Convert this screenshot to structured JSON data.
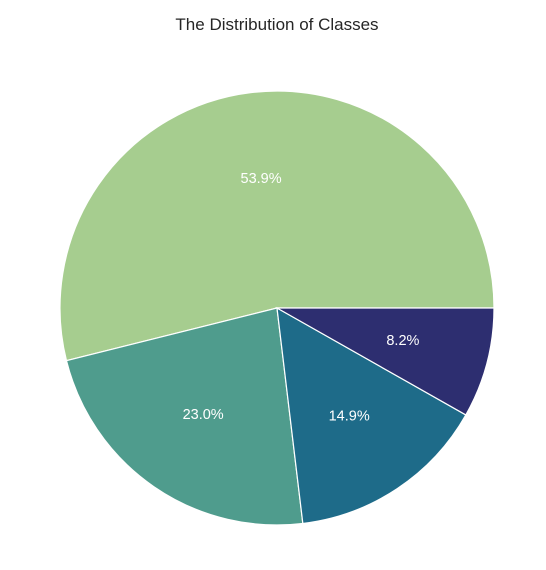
{
  "chart_data": {
    "type": "pie",
    "title": "The Distribution of Classes",
    "slices": [
      {
        "value": 53.9,
        "label": "53.9%",
        "color": "#a6cd8f"
      },
      {
        "value": 23.0,
        "label": "23.0%",
        "color": "#4f9c8d"
      },
      {
        "value": 14.9,
        "label": "14.9%",
        "color": "#1e6b89"
      },
      {
        "value": 8.2,
        "label": "8.2%",
        "color": "#2d2e70"
      }
    ],
    "start_angle_deg": 0,
    "direction": "counterclockwise"
  }
}
